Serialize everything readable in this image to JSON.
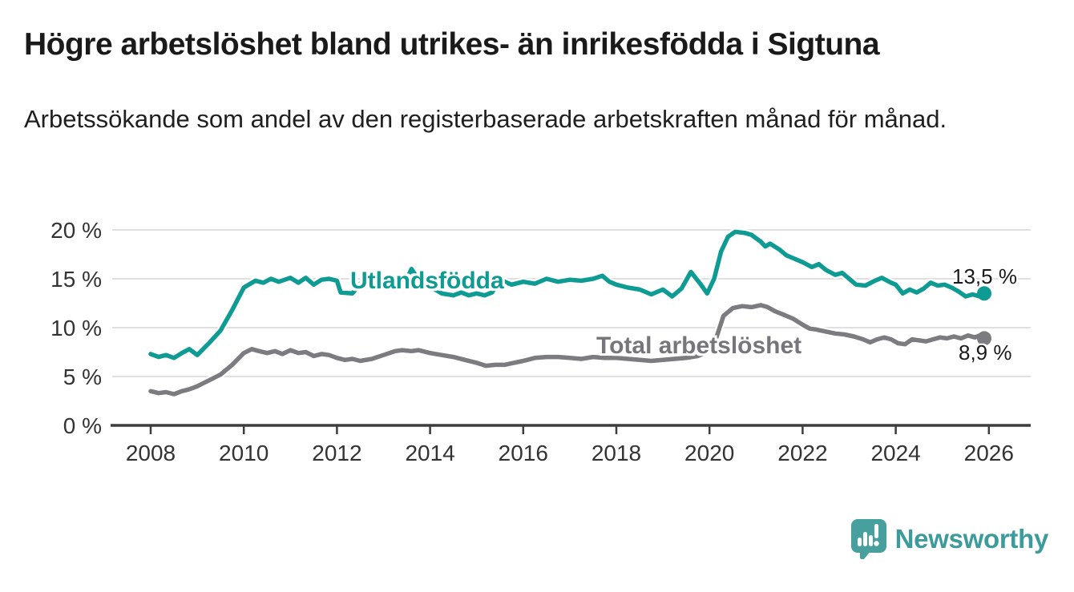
{
  "header": {
    "title": "Högre arbetslöshet bland utrikes- än inrikesfödda i Sigtuna",
    "subtitle": "Arbetssökande som andel av den registerbaserade arbetskraften månad för månad."
  },
  "chart_data": {
    "type": "line",
    "title": "Högre arbetslöshet bland utrikes- än inrikesfödda i Sigtuna",
    "xlabel": "",
    "ylabel": "",
    "y_unit": "%",
    "x_unit": "year (decimal)",
    "grid": "horizontal",
    "x_axis": {
      "tick_values": [
        2008,
        2010,
        2012,
        2014,
        2016,
        2018,
        2020,
        2022,
        2024,
        2026
      ],
      "tick_labels": [
        "2008",
        "2010",
        "2012",
        "2014",
        "2016",
        "2018",
        "2020",
        "2022",
        "2024",
        "2026"
      ],
      "range": [
        2007.2,
        2026.9
      ]
    },
    "y_axis": {
      "tick_values": [
        20,
        15,
        10,
        5,
        0
      ],
      "tick_labels": [
        "20 %",
        "15 %",
        "10 %",
        "5 %",
        "0 %"
      ],
      "range": [
        0,
        20
      ]
    },
    "series": [
      {
        "name": "Utlandsfödda",
        "color": "#0d9b93",
        "end_label": "13,5 %",
        "end_value": 13.5,
        "points": [
          [
            2008.0,
            7.3
          ],
          [
            2008.17,
            7.0
          ],
          [
            2008.33,
            7.2
          ],
          [
            2008.5,
            6.9
          ],
          [
            2008.67,
            7.4
          ],
          [
            2008.83,
            7.8
          ],
          [
            2009.0,
            7.2
          ],
          [
            2009.25,
            8.4
          ],
          [
            2009.5,
            9.7
          ],
          [
            2009.75,
            11.8
          ],
          [
            2010.0,
            14.1
          ],
          [
            2010.25,
            14.8
          ],
          [
            2010.42,
            14.6
          ],
          [
            2010.58,
            15.0
          ],
          [
            2010.75,
            14.7
          ],
          [
            2011.0,
            15.1
          ],
          [
            2011.17,
            14.6
          ],
          [
            2011.33,
            15.1
          ],
          [
            2011.5,
            14.4
          ],
          [
            2011.67,
            14.9
          ],
          [
            2011.83,
            15.0
          ],
          [
            2012.0,
            14.8
          ],
          [
            2012.08,
            13.6
          ],
          [
            2012.33,
            13.5
          ],
          [
            2012.5,
            14.5
          ],
          [
            2012.75,
            14.7
          ],
          [
            2013.0,
            14.5
          ],
          [
            2013.25,
            14.7
          ],
          [
            2013.5,
            15.0
          ],
          [
            2013.6,
            16.0
          ],
          [
            2013.75,
            14.9
          ],
          [
            2014.0,
            14.2
          ],
          [
            2014.25,
            13.5
          ],
          [
            2014.5,
            13.3
          ],
          [
            2014.67,
            13.6
          ],
          [
            2014.83,
            13.3
          ],
          [
            2015.0,
            13.5
          ],
          [
            2015.17,
            13.3
          ],
          [
            2015.33,
            13.6
          ],
          [
            2015.5,
            14.9
          ],
          [
            2015.75,
            14.4
          ],
          [
            2016.0,
            14.7
          ],
          [
            2016.25,
            14.5
          ],
          [
            2016.5,
            15.0
          ],
          [
            2016.75,
            14.7
          ],
          [
            2017.0,
            14.9
          ],
          [
            2017.25,
            14.8
          ],
          [
            2017.5,
            15.0
          ],
          [
            2017.7,
            15.3
          ],
          [
            2017.85,
            14.7
          ],
          [
            2018.0,
            14.4
          ],
          [
            2018.25,
            14.1
          ],
          [
            2018.5,
            13.9
          ],
          [
            2018.75,
            13.4
          ],
          [
            2019.0,
            13.9
          ],
          [
            2019.2,
            13.2
          ],
          [
            2019.4,
            14.0
          ],
          [
            2019.6,
            15.7
          ],
          [
            2019.8,
            14.5
          ],
          [
            2019.95,
            13.5
          ],
          [
            2020.1,
            15.0
          ],
          [
            2020.25,
            17.8
          ],
          [
            2020.4,
            19.3
          ],
          [
            2020.55,
            19.8
          ],
          [
            2020.75,
            19.7
          ],
          [
            2020.9,
            19.5
          ],
          [
            2021.1,
            18.8
          ],
          [
            2021.2,
            18.3
          ],
          [
            2021.3,
            18.6
          ],
          [
            2021.5,
            18.0
          ],
          [
            2021.65,
            17.4
          ],
          [
            2021.8,
            17.1
          ],
          [
            2022.0,
            16.7
          ],
          [
            2022.2,
            16.2
          ],
          [
            2022.35,
            16.5
          ],
          [
            2022.5,
            15.9
          ],
          [
            2022.7,
            15.4
          ],
          [
            2022.85,
            15.6
          ],
          [
            2023.0,
            15.0
          ],
          [
            2023.15,
            14.4
          ],
          [
            2023.35,
            14.3
          ],
          [
            2023.55,
            14.8
          ],
          [
            2023.7,
            15.1
          ],
          [
            2023.9,
            14.6
          ],
          [
            2024.0,
            14.4
          ],
          [
            2024.15,
            13.5
          ],
          [
            2024.3,
            13.9
          ],
          [
            2024.45,
            13.6
          ],
          [
            2024.6,
            14.0
          ],
          [
            2024.75,
            14.6
          ],
          [
            2024.9,
            14.3
          ],
          [
            2025.05,
            14.4
          ],
          [
            2025.2,
            14.1
          ],
          [
            2025.35,
            13.7
          ],
          [
            2025.5,
            13.2
          ],
          [
            2025.65,
            13.4
          ],
          [
            2025.8,
            13.2
          ],
          [
            2025.9,
            13.5
          ]
        ]
      },
      {
        "name": "Total arbetslöshet",
        "color": "#7b7b80",
        "end_label": "8,9 %",
        "end_value": 8.9,
        "points": [
          [
            2008.0,
            3.5
          ],
          [
            2008.17,
            3.3
          ],
          [
            2008.33,
            3.4
          ],
          [
            2008.5,
            3.2
          ],
          [
            2008.67,
            3.5
          ],
          [
            2008.83,
            3.7
          ],
          [
            2009.0,
            4.0
          ],
          [
            2009.25,
            4.6
          ],
          [
            2009.5,
            5.2
          ],
          [
            2009.75,
            6.2
          ],
          [
            2010.0,
            7.4
          ],
          [
            2010.17,
            7.8
          ],
          [
            2010.33,
            7.6
          ],
          [
            2010.5,
            7.4
          ],
          [
            2010.67,
            7.6
          ],
          [
            2010.83,
            7.3
          ],
          [
            2011.0,
            7.7
          ],
          [
            2011.17,
            7.4
          ],
          [
            2011.33,
            7.5
          ],
          [
            2011.5,
            7.1
          ],
          [
            2011.67,
            7.3
          ],
          [
            2011.83,
            7.2
          ],
          [
            2012.0,
            6.9
          ],
          [
            2012.17,
            6.7
          ],
          [
            2012.33,
            6.8
          ],
          [
            2012.5,
            6.6
          ],
          [
            2012.75,
            6.8
          ],
          [
            2013.0,
            7.2
          ],
          [
            2013.25,
            7.6
          ],
          [
            2013.4,
            7.7
          ],
          [
            2013.6,
            7.6
          ],
          [
            2013.75,
            7.7
          ],
          [
            2014.0,
            7.4
          ],
          [
            2014.25,
            7.2
          ],
          [
            2014.5,
            7.0
          ],
          [
            2014.75,
            6.7
          ],
          [
            2015.0,
            6.4
          ],
          [
            2015.2,
            6.1
          ],
          [
            2015.4,
            6.2
          ],
          [
            2015.6,
            6.2
          ],
          [
            2015.8,
            6.4
          ],
          [
            2016.0,
            6.6
          ],
          [
            2016.25,
            6.9
          ],
          [
            2016.5,
            7.0
          ],
          [
            2016.75,
            7.0
          ],
          [
            2017.0,
            6.9
          ],
          [
            2017.25,
            6.8
          ],
          [
            2017.5,
            7.0
          ],
          [
            2017.75,
            6.9
          ],
          [
            2018.0,
            6.9
          ],
          [
            2018.25,
            6.8
          ],
          [
            2018.5,
            6.7
          ],
          [
            2018.75,
            6.6
          ],
          [
            2019.0,
            6.7
          ],
          [
            2019.25,
            6.8
          ],
          [
            2019.5,
            6.9
          ],
          [
            2019.75,
            7.1
          ],
          [
            2020.0,
            7.6
          ],
          [
            2020.15,
            9.0
          ],
          [
            2020.3,
            11.2
          ],
          [
            2020.5,
            12.0
          ],
          [
            2020.7,
            12.2
          ],
          [
            2020.9,
            12.1
          ],
          [
            2021.1,
            12.3
          ],
          [
            2021.25,
            12.1
          ],
          [
            2021.4,
            11.7
          ],
          [
            2021.6,
            11.3
          ],
          [
            2021.8,
            10.9
          ],
          [
            2022.0,
            10.3
          ],
          [
            2022.15,
            9.9
          ],
          [
            2022.3,
            9.8
          ],
          [
            2022.5,
            9.6
          ],
          [
            2022.7,
            9.4
          ],
          [
            2022.9,
            9.3
          ],
          [
            2023.1,
            9.1
          ],
          [
            2023.3,
            8.8
          ],
          [
            2023.45,
            8.5
          ],
          [
            2023.6,
            8.8
          ],
          [
            2023.75,
            9.0
          ],
          [
            2023.9,
            8.8
          ],
          [
            2024.05,
            8.4
          ],
          [
            2024.2,
            8.3
          ],
          [
            2024.35,
            8.8
          ],
          [
            2024.5,
            8.7
          ],
          [
            2024.65,
            8.6
          ],
          [
            2024.8,
            8.8
          ],
          [
            2024.95,
            9.0
          ],
          [
            2025.1,
            8.9
          ],
          [
            2025.25,
            9.1
          ],
          [
            2025.4,
            8.9
          ],
          [
            2025.55,
            9.2
          ],
          [
            2025.7,
            9.0
          ],
          [
            2025.8,
            9.2
          ],
          [
            2025.9,
            8.9
          ]
        ]
      }
    ],
    "colors": {
      "accent_teal": "#0d9b93",
      "gray": "#7b7b80",
      "gridline": "#e0e0e0",
      "axis": "#3d3d3d",
      "text": "#333333"
    },
    "legend_position": "inline-labels"
  },
  "footer": {
    "brand": "Newsworthy"
  }
}
